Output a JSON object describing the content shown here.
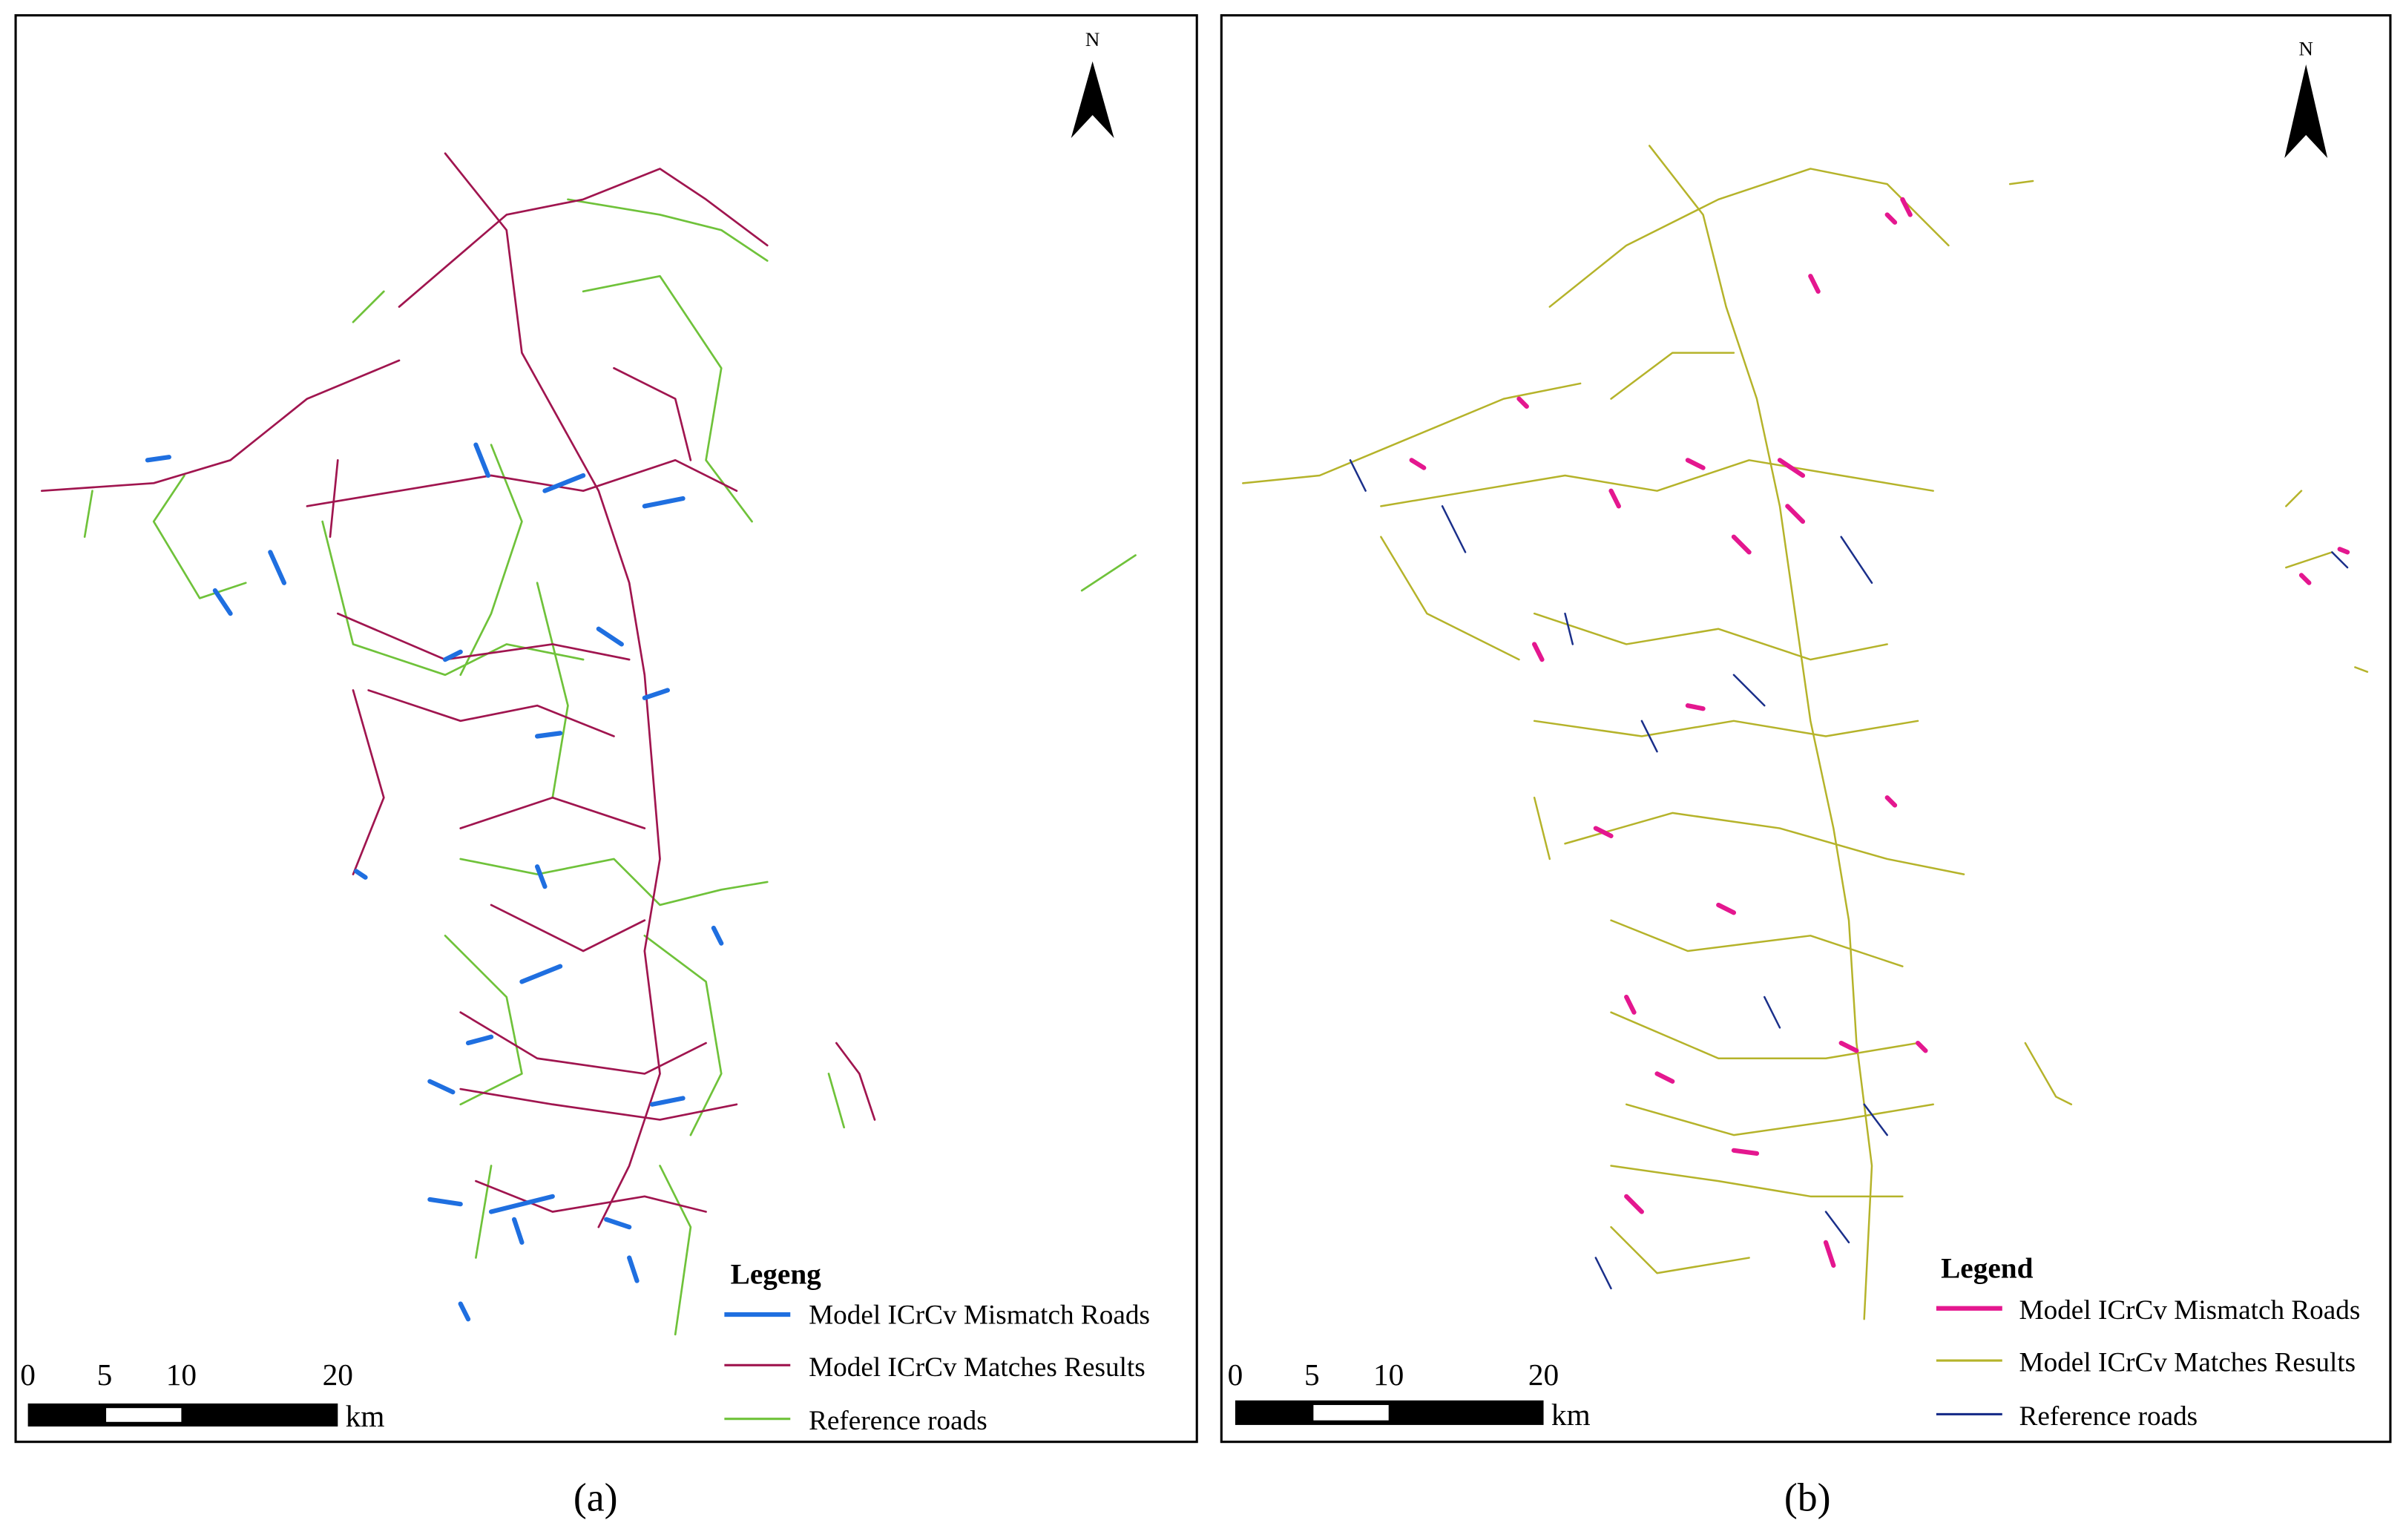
{
  "panels": [
    {
      "north": "N",
      "legend": {
        "title": "Legeng",
        "items": [
          "Model ICrCv Mismatch Roads",
          "Model ICrCv Matches Results",
          "Reference roads"
        ]
      },
      "scale": {
        "labels": [
          "0",
          "5",
          "10",
          "20"
        ],
        "unit": "km"
      },
      "caption": "(a)"
    },
    {
      "north": "N",
      "legend": {
        "title": "Legend",
        "items": [
          "Model ICrCv Mismatch Roads",
          "Model ICrCv Matches Results",
          "Reference roads"
        ]
      },
      "scale": {
        "labels": [
          "0",
          "5",
          "10",
          "20"
        ],
        "unit": "km"
      },
      "caption": "(b)"
    }
  ]
}
